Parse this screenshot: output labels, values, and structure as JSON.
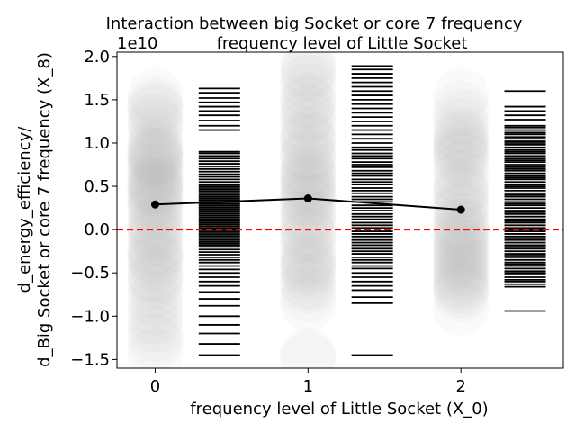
{
  "chart_data": {
    "type": "scatter",
    "title_line1": "Interaction between big Socket or core 7 frequency",
    "title_line2": "frequency level of Little Socket",
    "xlabel": "frequency level of Little Socket (X_0)",
    "ylabel_line1": "d_energy_efficiency/",
    "ylabel_line2": "d_Big Socket or core 7 frequency (X_8)",
    "y_offset_label": "1e10",
    "xlim": [
      -0.25,
      2.67
    ],
    "ylim": [
      -1.6,
      2.05
    ],
    "x_ticks": [
      0,
      1,
      2
    ],
    "x_tick_labels": [
      "0",
      "1",
      "2"
    ],
    "y_ticks": [
      -1.5,
      -1.0,
      -0.5,
      0.0,
      0.5,
      1.0,
      1.5,
      2.0
    ],
    "y_tick_labels": [
      "−1.5",
      "−1.0",
      "−0.5",
      "0.0",
      "0.5",
      "1.0",
      "1.5",
      "2.0"
    ],
    "reference_line": {
      "y": 0.0,
      "color": "#ff0000",
      "style": "dashed"
    },
    "mean_line": {
      "color": "#000000",
      "x": [
        0,
        1,
        2
      ],
      "y": [
        0.29,
        0.36,
        0.23
      ]
    },
    "point_clouds": [
      {
        "x": 0,
        "color": "#808080",
        "y": [
          1.55,
          1.45,
          1.4,
          1.35,
          1.25,
          1.2,
          1.1,
          1.0,
          0.95,
          0.9,
          0.85,
          0.85,
          0.8,
          0.75,
          0.7,
          0.65,
          0.6,
          0.55,
          0.5,
          0.5,
          0.45,
          0.4,
          0.35,
          0.3,
          0.25,
          0.2,
          0.1,
          0.05,
          0.0,
          -0.05,
          -0.1,
          -0.2,
          -0.25,
          -0.3,
          -0.35,
          -0.4,
          -0.5,
          -0.55,
          -0.6,
          -0.7,
          -0.8,
          -0.9,
          -1.0,
          -1.1,
          -1.2,
          -1.3,
          -1.45
        ]
      },
      {
        "x": 1,
        "color": "#808080",
        "y": [
          1.95,
          1.85,
          1.8,
          1.7,
          1.6,
          1.5,
          1.45,
          1.35,
          1.3,
          1.2,
          1.1,
          1.05,
          1.0,
          0.9,
          0.85,
          0.8,
          0.7,
          0.65,
          0.6,
          0.55,
          0.5,
          0.45,
          0.4,
          0.35,
          0.3,
          0.2,
          0.15,
          0.1,
          0.0,
          -0.05,
          -0.1,
          -0.2,
          -0.3,
          -0.35,
          -0.4,
          -0.45,
          -0.5,
          -0.6,
          -0.65,
          -0.75,
          -0.85,
          -1.45,
          -1.5
        ]
      },
      {
        "x": 2,
        "color": "#808080",
        "y": [
          1.55,
          1.4,
          1.3,
          1.2,
          1.1,
          1.05,
          1.0,
          0.95,
          0.9,
          0.85,
          0.8,
          0.7,
          0.6,
          0.5,
          0.45,
          0.4,
          0.3,
          0.25,
          0.2,
          0.1,
          0.05,
          0.0,
          -0.05,
          -0.1,
          -0.15,
          -0.2,
          -0.25,
          -0.3,
          -0.35,
          -0.4,
          -0.45,
          -0.5,
          -0.55,
          -0.6,
          -0.65,
          -0.7,
          -0.75,
          -0.9
        ]
      }
    ],
    "rugs": [
      {
        "x_center": 0.42,
        "color": "#000000",
        "y": [
          1.63,
          1.58,
          1.52,
          1.47,
          1.42,
          1.37,
          1.32,
          1.26,
          1.2,
          1.15,
          0.9,
          0.88,
          0.85,
          0.82,
          0.79,
          0.76,
          0.73,
          0.7,
          0.67,
          0.64,
          0.61,
          0.58,
          0.55,
          0.52,
          0.5,
          0.48,
          0.46,
          0.44,
          0.42,
          0.4,
          0.38,
          0.36,
          0.34,
          0.32,
          0.3,
          0.28,
          0.26,
          0.24,
          0.22,
          0.2,
          0.18,
          0.16,
          0.14,
          0.12,
          0.1,
          0.08,
          0.06,
          0.04,
          0.02,
          0.0,
          -0.02,
          -0.04,
          -0.06,
          -0.08,
          -0.1,
          -0.12,
          -0.14,
          -0.16,
          -0.18,
          -0.2,
          -0.23,
          -0.26,
          -0.29,
          -0.32,
          -0.35,
          -0.38,
          -0.42,
          -0.46,
          -0.5,
          -0.55,
          -0.6,
          -0.65,
          -0.72,
          -0.8,
          -0.88,
          -1.0,
          -1.1,
          -1.2,
          -1.32,
          -1.45
        ]
      },
      {
        "x_center": 1.42,
        "color": "#000000",
        "y": [
          1.89,
          1.85,
          1.8,
          1.75,
          1.7,
          1.65,
          1.6,
          1.55,
          1.5,
          1.45,
          1.4,
          1.35,
          1.3,
          1.25,
          1.2,
          1.15,
          1.1,
          1.05,
          1.0,
          0.95,
          0.92,
          0.88,
          0.85,
          0.82,
          0.78,
          0.75,
          0.72,
          0.68,
          0.65,
          0.62,
          0.58,
          0.55,
          0.52,
          0.48,
          0.45,
          0.42,
          0.38,
          0.35,
          0.32,
          0.28,
          0.25,
          0.22,
          0.18,
          0.15,
          0.12,
          0.08,
          0.05,
          0.02,
          -0.02,
          -0.05,
          -0.08,
          -0.12,
          -0.15,
          -0.18,
          -0.22,
          -0.25,
          -0.28,
          -0.32,
          -0.35,
          -0.38,
          -0.42,
          -0.45,
          -0.5,
          -0.55,
          -0.6,
          -0.65,
          -0.7,
          -0.78,
          -0.85,
          -1.45
        ]
      },
      {
        "x_center": 2.42,
        "color": "#000000",
        "y": [
          1.6,
          1.42,
          1.37,
          1.32,
          1.27,
          1.2,
          1.18,
          1.15,
          1.12,
          1.1,
          1.07,
          1.05,
          1.02,
          1.0,
          0.98,
          0.95,
          0.92,
          0.9,
          0.88,
          0.85,
          0.82,
          0.8,
          0.78,
          0.75,
          0.72,
          0.7,
          0.68,
          0.65,
          0.62,
          0.6,
          0.58,
          0.55,
          0.52,
          0.5,
          0.48,
          0.45,
          0.42,
          0.4,
          0.38,
          0.35,
          0.32,
          0.3,
          0.28,
          0.25,
          0.22,
          0.2,
          0.18,
          0.15,
          0.12,
          0.1,
          0.08,
          0.05,
          0.02,
          0.0,
          -0.02,
          -0.05,
          -0.08,
          -0.1,
          -0.12,
          -0.15,
          -0.18,
          -0.2,
          -0.22,
          -0.25,
          -0.28,
          -0.3,
          -0.32,
          -0.35,
          -0.38,
          -0.4,
          -0.42,
          -0.45,
          -0.48,
          -0.5,
          -0.52,
          -0.55,
          -0.58,
          -0.6,
          -0.63,
          -0.66,
          -0.94
        ]
      }
    ]
  }
}
